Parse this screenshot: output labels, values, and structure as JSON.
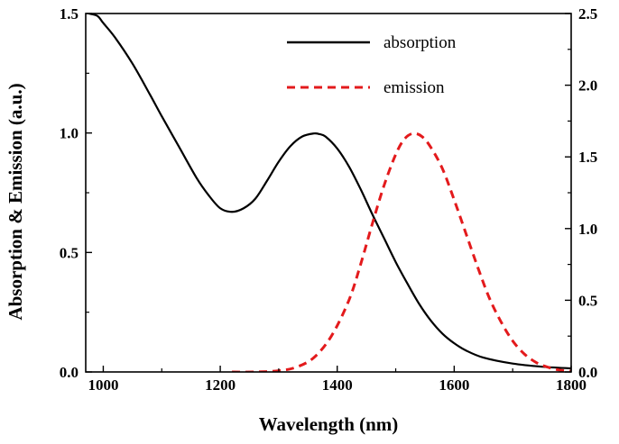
{
  "chart_data": {
    "type": "line",
    "title": "",
    "xlabel": "Wavelength (nm)",
    "ylabel_left": "Absorption & Emission (a.u.)",
    "ylabel_right": "",
    "xlim": [
      970,
      1800
    ],
    "ylim_left": [
      0,
      1.5
    ],
    "ylim_right": [
      0,
      2.5
    ],
    "x_ticks": [
      1000,
      1200,
      1400,
      1600,
      1800
    ],
    "x_tick_labels": [
      "1000",
      "1200",
      "1400",
      "1600",
      "1800"
    ],
    "y_left_ticks": [
      0,
      0.5,
      1.0,
      1.5
    ],
    "y_left_tick_labels": [
      "0.0",
      "0.5",
      "1.0",
      "1.5"
    ],
    "y_right_ticks": [
      0,
      0.5,
      1.0,
      1.5,
      2.0,
      2.5
    ],
    "y_right_tick_labels": [
      "0.0",
      "0.5",
      "1.0",
      "1.5",
      "2.0",
      "2.5"
    ],
    "grid": false,
    "legend": "top-right",
    "series": [
      {
        "name": "absorption",
        "axis": "left",
        "color": "#000000",
        "style": "solid",
        "x": [
          975,
          990,
          1000,
          1020,
          1050,
          1080,
          1100,
          1130,
          1160,
          1180,
          1200,
          1220,
          1240,
          1260,
          1280,
          1300,
          1320,
          1340,
          1360,
          1370,
          1380,
          1400,
          1420,
          1440,
          1460,
          1480,
          1500,
          1520,
          1540,
          1560,
          1580,
          1600,
          1620,
          1650,
          1700,
          1750,
          1800
        ],
        "y": [
          1.5,
          1.49,
          1.46,
          1.4,
          1.29,
          1.16,
          1.07,
          0.94,
          0.81,
          0.74,
          0.685,
          0.67,
          0.685,
          0.725,
          0.8,
          0.88,
          0.945,
          0.985,
          0.998,
          0.995,
          0.985,
          0.935,
          0.86,
          0.765,
          0.66,
          0.56,
          0.46,
          0.37,
          0.285,
          0.215,
          0.16,
          0.12,
          0.09,
          0.06,
          0.035,
          0.022,
          0.015
        ]
      },
      {
        "name": "emission",
        "axis": "left",
        "color": "#e31a1c",
        "style": "dashed",
        "x": [
          1220,
          1260,
          1300,
          1330,
          1360,
          1390,
          1420,
          1440,
          1460,
          1480,
          1500,
          1515,
          1530,
          1545,
          1560,
          1580,
          1600,
          1620,
          1640,
          1660,
          1680,
          1700,
          1720,
          1740,
          1760,
          1780,
          1800
        ],
        "y": [
          0.0,
          0.0,
          0.005,
          0.02,
          0.06,
          0.15,
          0.3,
          0.45,
          0.62,
          0.78,
          0.91,
          0.975,
          0.998,
          0.985,
          0.94,
          0.85,
          0.72,
          0.58,
          0.44,
          0.31,
          0.21,
          0.13,
          0.075,
          0.04,
          0.02,
          0.008,
          0.003
        ]
      }
    ]
  }
}
